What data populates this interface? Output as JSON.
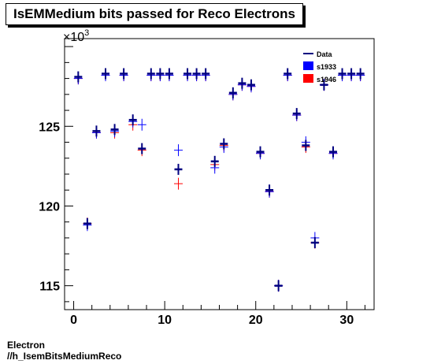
{
  "title": "IsEMMedium bits passed for Reco Electrons",
  "footer": {
    "line1": "Electron",
    "line2": "//h_IsemBitsMediumReco"
  },
  "chart_data": {
    "type": "scatter",
    "title": "IsEMMedium bits passed for Reco Electrons",
    "xlabel": "",
    "ylabel": "",
    "y_multiplier_label": "×10",
    "y_multiplier_exponent": "3",
    "xlim": [
      -1,
      33
    ],
    "ylim": [
      113.5,
      130.5
    ],
    "x_ticks": [
      0,
      10,
      20,
      30
    ],
    "y_ticks": [
      115,
      120,
      125
    ],
    "legend_position": "top-right",
    "series": [
      {
        "name": "Data",
        "color": "#000080",
        "style": "cross",
        "x": [
          0.5,
          1.5,
          2.5,
          3.5,
          4.5,
          5.5,
          6.5,
          7.5,
          8.5,
          9.5,
          10.5,
          11.5,
          12.5,
          13.5,
          14.5,
          15.5,
          16.5,
          17.5,
          18.5,
          19.5,
          20.5,
          21.5,
          22.5,
          23.5,
          24.5,
          25.5,
          26.5,
          27.5,
          28.5,
          29.5,
          30.5,
          31.5
        ],
        "y": [
          128.1,
          118.9,
          124.7,
          128.3,
          124.8,
          128.3,
          125.4,
          123.6,
          128.3,
          128.3,
          128.3,
          122.3,
          128.3,
          128.3,
          128.3,
          122.8,
          123.9,
          127.1,
          127.7,
          127.6,
          123.4,
          121.0,
          115.0,
          128.3,
          125.8,
          123.8,
          117.7,
          127.6,
          123.4,
          128.3,
          128.3,
          128.3
        ]
      },
      {
        "name": "s1933",
        "color": "#0000ff",
        "style": "cross",
        "x": [
          0.5,
          1.5,
          2.5,
          3.5,
          4.5,
          5.5,
          6.5,
          7.5,
          8.5,
          9.5,
          10.5,
          11.5,
          12.5,
          13.5,
          14.5,
          15.5,
          16.5,
          17.5,
          18.5,
          19.5,
          20.5,
          21.5,
          22.5,
          23.5,
          24.5,
          25.5,
          26.5,
          27.5,
          28.5,
          29.5,
          30.5,
          31.5
        ],
        "y": [
          128.0,
          118.8,
          124.6,
          128.2,
          124.7,
          128.2,
          125.3,
          125.1,
          128.2,
          128.2,
          128.2,
          123.5,
          128.2,
          128.2,
          128.2,
          122.4,
          123.7,
          127.0,
          127.6,
          127.5,
          123.3,
          120.9,
          115.0,
          128.2,
          125.7,
          124.0,
          118.0,
          127.6,
          123.3,
          128.2,
          128.2,
          128.2
        ]
      },
      {
        "name": "s1946",
        "color": "#ff0000",
        "style": "cross",
        "x": [
          0.5,
          1.5,
          2.5,
          3.5,
          4.5,
          5.5,
          6.5,
          7.5,
          8.5,
          9.5,
          10.5,
          11.5,
          12.5,
          13.5,
          14.5,
          15.5,
          16.5,
          17.5,
          18.5,
          19.5,
          20.5,
          21.5,
          22.5,
          23.5,
          24.5,
          25.5,
          26.5,
          27.5,
          28.5,
          29.5,
          30.5,
          31.5
        ],
        "y": [
          128.0,
          118.9,
          124.6,
          128.2,
          124.6,
          128.2,
          125.1,
          123.5,
          128.2,
          128.2,
          128.2,
          121.4,
          128.2,
          128.2,
          128.2,
          122.6,
          123.8,
          127.0,
          127.6,
          127.5,
          123.3,
          120.9,
          115.0,
          128.2,
          125.7,
          123.7,
          117.7,
          127.6,
          123.3,
          128.2,
          128.2,
          128.2
        ]
      }
    ]
  }
}
